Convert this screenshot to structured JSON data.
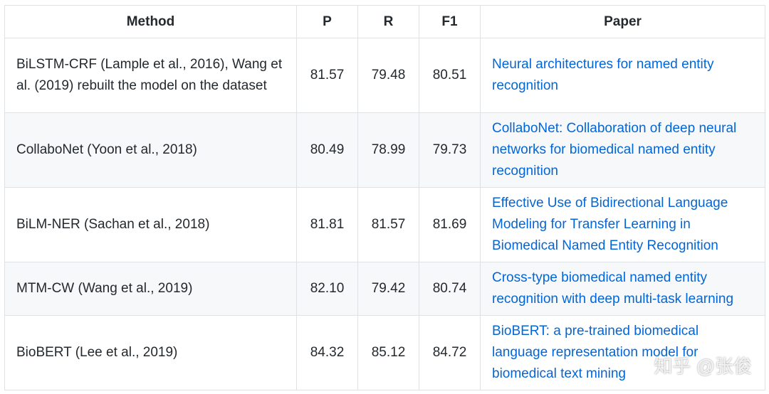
{
  "table": {
    "columns": [
      "Method",
      "P",
      "R",
      "F1",
      "Paper"
    ],
    "rows": [
      [
        "BiLSTM-CRF (Lample et al., 2016), Wang et al. (2019) rebuilt the model on the dataset",
        "81.57",
        "79.48",
        "80.51",
        "Neural architectures for named entity recognition"
      ],
      [
        "CollaboNet (Yoon et al., 2018)",
        "80.49",
        "78.99",
        "79.73",
        "CollaboNet: Collaboration of deep neural networks for biomedical named entity recognition"
      ],
      [
        "BiLM-NER (Sachan et al., 2018)",
        "81.81",
        "81.57",
        "81.69",
        "Effective Use of Bidirectional Language Modeling for Transfer Learning in Biomedical Named Entity Recognition"
      ],
      [
        "MTM-CW (Wang et al., 2019)",
        "82.10",
        "79.42",
        "80.74",
        "Cross-type biomedical named entity recognition with deep multi-task learning"
      ],
      [
        "BioBERT (Lee et al., 2019)",
        "84.32",
        "85.12",
        "84.72",
        "BioBERT: a pre-trained biomedical language representation model for biomedical text mining"
      ]
    ]
  },
  "watermark": "知乎 @张俊"
}
